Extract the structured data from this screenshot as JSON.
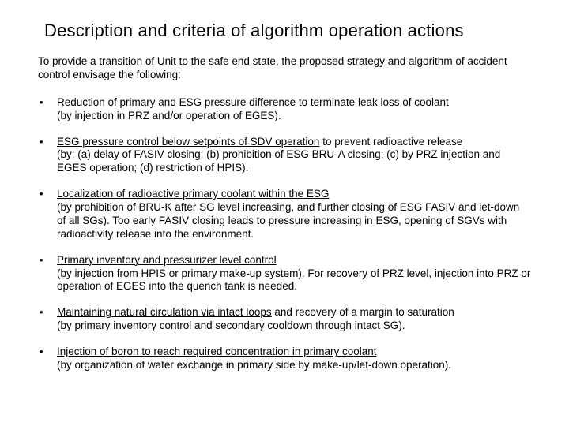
{
  "title": "Description and criteria of algorithm operation actions",
  "intro": "To provide a transition of Unit to the safe end state, the proposed strategy and algorithm of accident control envisage the following:",
  "bullets": [
    {
      "lead": "Reduction of primary and ESG pressure difference",
      "rest": " to terminate leak loss of coolant",
      "note": "(by injection in PRZ and/or operation of EGES)."
    },
    {
      "lead": "ESG pressure control below setpoints of SDV operation",
      "rest": " to prevent radioactive release",
      "note": "(by: (a) delay of FASIV closing; (b) prohibition of ESG BRU-A closing; (c) by PRZ injection and EGES operation; (d) restriction of HPIS)."
    },
    {
      "lead": "Localization of radioactive primary coolant within the ESG",
      "rest": "",
      "note": "(by prohibition of BRU-K after SG level increasing, and further closing of ESG FASIV and let-down of all SGs). Too early FASIV closing leads to pressure increasing in ESG, opening of SGVs with radioactivity release into the environment."
    },
    {
      "lead": "Primary inventory and pressurizer level control",
      "rest": "",
      "note": "(by injection from HPIS or primary make-up system). For recovery of PRZ level, injection into PRZ or operation of EGES into the quench tank is needed."
    },
    {
      "lead": "Maintaining natural circulation via intact loops",
      "rest": " and recovery of a margin to saturation",
      "note": "(by primary inventory control and secondary cooldown through intact SG)."
    },
    {
      "lead": "Injection of boron to reach required concentration in primary coolant",
      "rest": "",
      "note": "(by organization of water exchange in primary side by make-up/let-down operation)."
    }
  ]
}
